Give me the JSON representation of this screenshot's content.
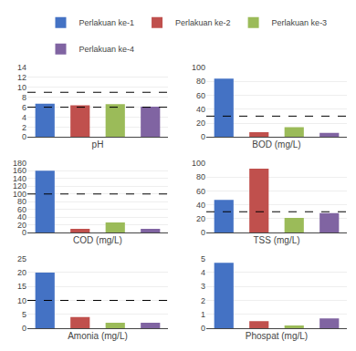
{
  "chart_data": [
    {
      "type": "bar",
      "xlabel": "pH",
      "categories": [
        null,
        null,
        null,
        null
      ],
      "series": [
        {
          "name": "Perlakuan ke-1",
          "color": "#4472C4",
          "values": [
            6.7,
            null,
            null,
            null
          ]
        },
        {
          "name": "Perlakuan ke-2",
          "color": "#C0504D",
          "values": [
            null,
            6.4,
            null,
            null
          ]
        },
        {
          "name": "Perlakuan ke-3",
          "color": "#9BBB59",
          "values": [
            null,
            null,
            6.6,
            null
          ]
        },
        {
          "name": "Perlakuan ke-4",
          "color": "#8064A2",
          "values": [
            null,
            null,
            null,
            6.1
          ]
        }
      ],
      "hlines": [
        9.0,
        6.0
      ],
      "ylim": [
        0,
        14
      ],
      "yticks": [
        0,
        2,
        4,
        6,
        8,
        10,
        12,
        14
      ],
      "grid": true,
      "tick_labels": "y",
      "legend": "top"
    },
    {
      "type": "bar",
      "xlabel": "BOD (mg/L)",
      "categories": [
        null,
        null,
        null,
        null
      ],
      "series": [
        {
          "name": "Perlakuan ke-1",
          "color": "#4472C4",
          "values": [
            84,
            null,
            null,
            null
          ]
        },
        {
          "name": "Perlakuan ke-2",
          "color": "#C0504D",
          "values": [
            null,
            7,
            null,
            null
          ]
        },
        {
          "name": "Perlakuan ke-3",
          "color": "#9BBB59",
          "values": [
            null,
            null,
            14,
            null
          ]
        },
        {
          "name": "Perlakuan ke-4",
          "color": "#8064A2",
          "values": [
            null,
            null,
            null,
            6
          ]
        }
      ],
      "hlines": [
        30
      ],
      "ylim": [
        0,
        100
      ],
      "yticks": [
        0,
        20,
        40,
        60,
        80,
        100
      ],
      "grid": true,
      "tick_labels": "y",
      "legend": "top"
    },
    {
      "type": "bar",
      "xlabel": "COD (mg/L)",
      "categories": [
        null,
        null,
        null,
        null
      ],
      "series": [
        {
          "name": "Perlakuan ke-1",
          "color": "#4472C4",
          "values": [
            160,
            null,
            null,
            null
          ]
        },
        {
          "name": "Perlakuan ke-2",
          "color": "#C0504D",
          "values": [
            null,
            10,
            null,
            null
          ]
        },
        {
          "name": "Perlakuan ke-3",
          "color": "#9BBB59",
          "values": [
            null,
            null,
            26,
            null
          ]
        },
        {
          "name": "Perlakuan ke-4",
          "color": "#8064A2",
          "values": [
            null,
            null,
            null,
            10
          ]
        }
      ],
      "hlines": [
        100
      ],
      "ylim": [
        0,
        180
      ],
      "yticks": [
        0,
        20,
        40,
        60,
        80,
        100,
        120,
        140,
        160,
        180
      ],
      "grid": true,
      "tick_labels": "y",
      "legend": "top"
    },
    {
      "type": "bar",
      "xlabel": "TSS (mg/L)",
      "categories": [
        null,
        null,
        null,
        null
      ],
      "series": [
        {
          "name": "Perlakuan ke-1",
          "color": "#4472C4",
          "values": [
            47,
            null,
            null,
            null
          ]
        },
        {
          "name": "Perlakuan ke-2",
          "color": "#C0504D",
          "values": [
            null,
            92,
            null,
            null
          ]
        },
        {
          "name": "Perlakuan ke-3",
          "color": "#9BBB59",
          "values": [
            null,
            null,
            21,
            null
          ]
        },
        {
          "name": "Perlakuan ke-4",
          "color": "#8064A2",
          "values": [
            null,
            null,
            null,
            28
          ]
        }
      ],
      "hlines": [
        30
      ],
      "ylim": [
        0,
        100
      ],
      "yticks": [
        0,
        20,
        40,
        60,
        80,
        100
      ],
      "grid": true,
      "tick_labels": "y",
      "legend": "top"
    },
    {
      "type": "bar",
      "xlabel": "Amonia (mg/L)",
      "categories": [
        null,
        null,
        null,
        null
      ],
      "series": [
        {
          "name": "Perlakuan ke-1",
          "color": "#4472C4",
          "values": [
            20,
            null,
            null,
            null
          ]
        },
        {
          "name": "Perlakuan ke-2",
          "color": "#C0504D",
          "values": [
            null,
            4,
            null,
            null
          ]
        },
        {
          "name": "Perlakuan ke-3",
          "color": "#9BBB59",
          "values": [
            null,
            null,
            2,
            null
          ]
        },
        {
          "name": "Perlakuan ke-4",
          "color": "#8064A2",
          "values": [
            null,
            null,
            null,
            2
          ]
        }
      ],
      "hlines": [
        10
      ],
      "ylim": [
        0,
        25
      ],
      "yticks": [
        0,
        5,
        10,
        15,
        20,
        25
      ],
      "grid": true,
      "tick_labels": "y",
      "legend": "top"
    },
    {
      "type": "bar",
      "xlabel": "Phospat (mg/L)",
      "categories": [
        null,
        null,
        null,
        null
      ],
      "series": [
        {
          "name": "Perlakuan ke-1",
          "color": "#4472C4",
          "values": [
            4.7,
            null,
            null,
            null
          ]
        },
        {
          "name": "Perlakuan ke-2",
          "color": "#C0504D",
          "values": [
            null,
            0.5,
            null,
            null
          ]
        },
        {
          "name": "Perlakuan ke-3",
          "color": "#9BBB59",
          "values": [
            null,
            null,
            0.2,
            null
          ]
        },
        {
          "name": "Perlakuan ke-4",
          "color": "#8064A2",
          "values": [
            null,
            null,
            null,
            0.7
          ]
        }
      ],
      "ylim": [
        0,
        5
      ],
      "yticks": [
        0,
        1,
        2,
        3,
        4,
        5
      ],
      "grid": true,
      "tick_labels": "y",
      "legend": "top"
    }
  ]
}
